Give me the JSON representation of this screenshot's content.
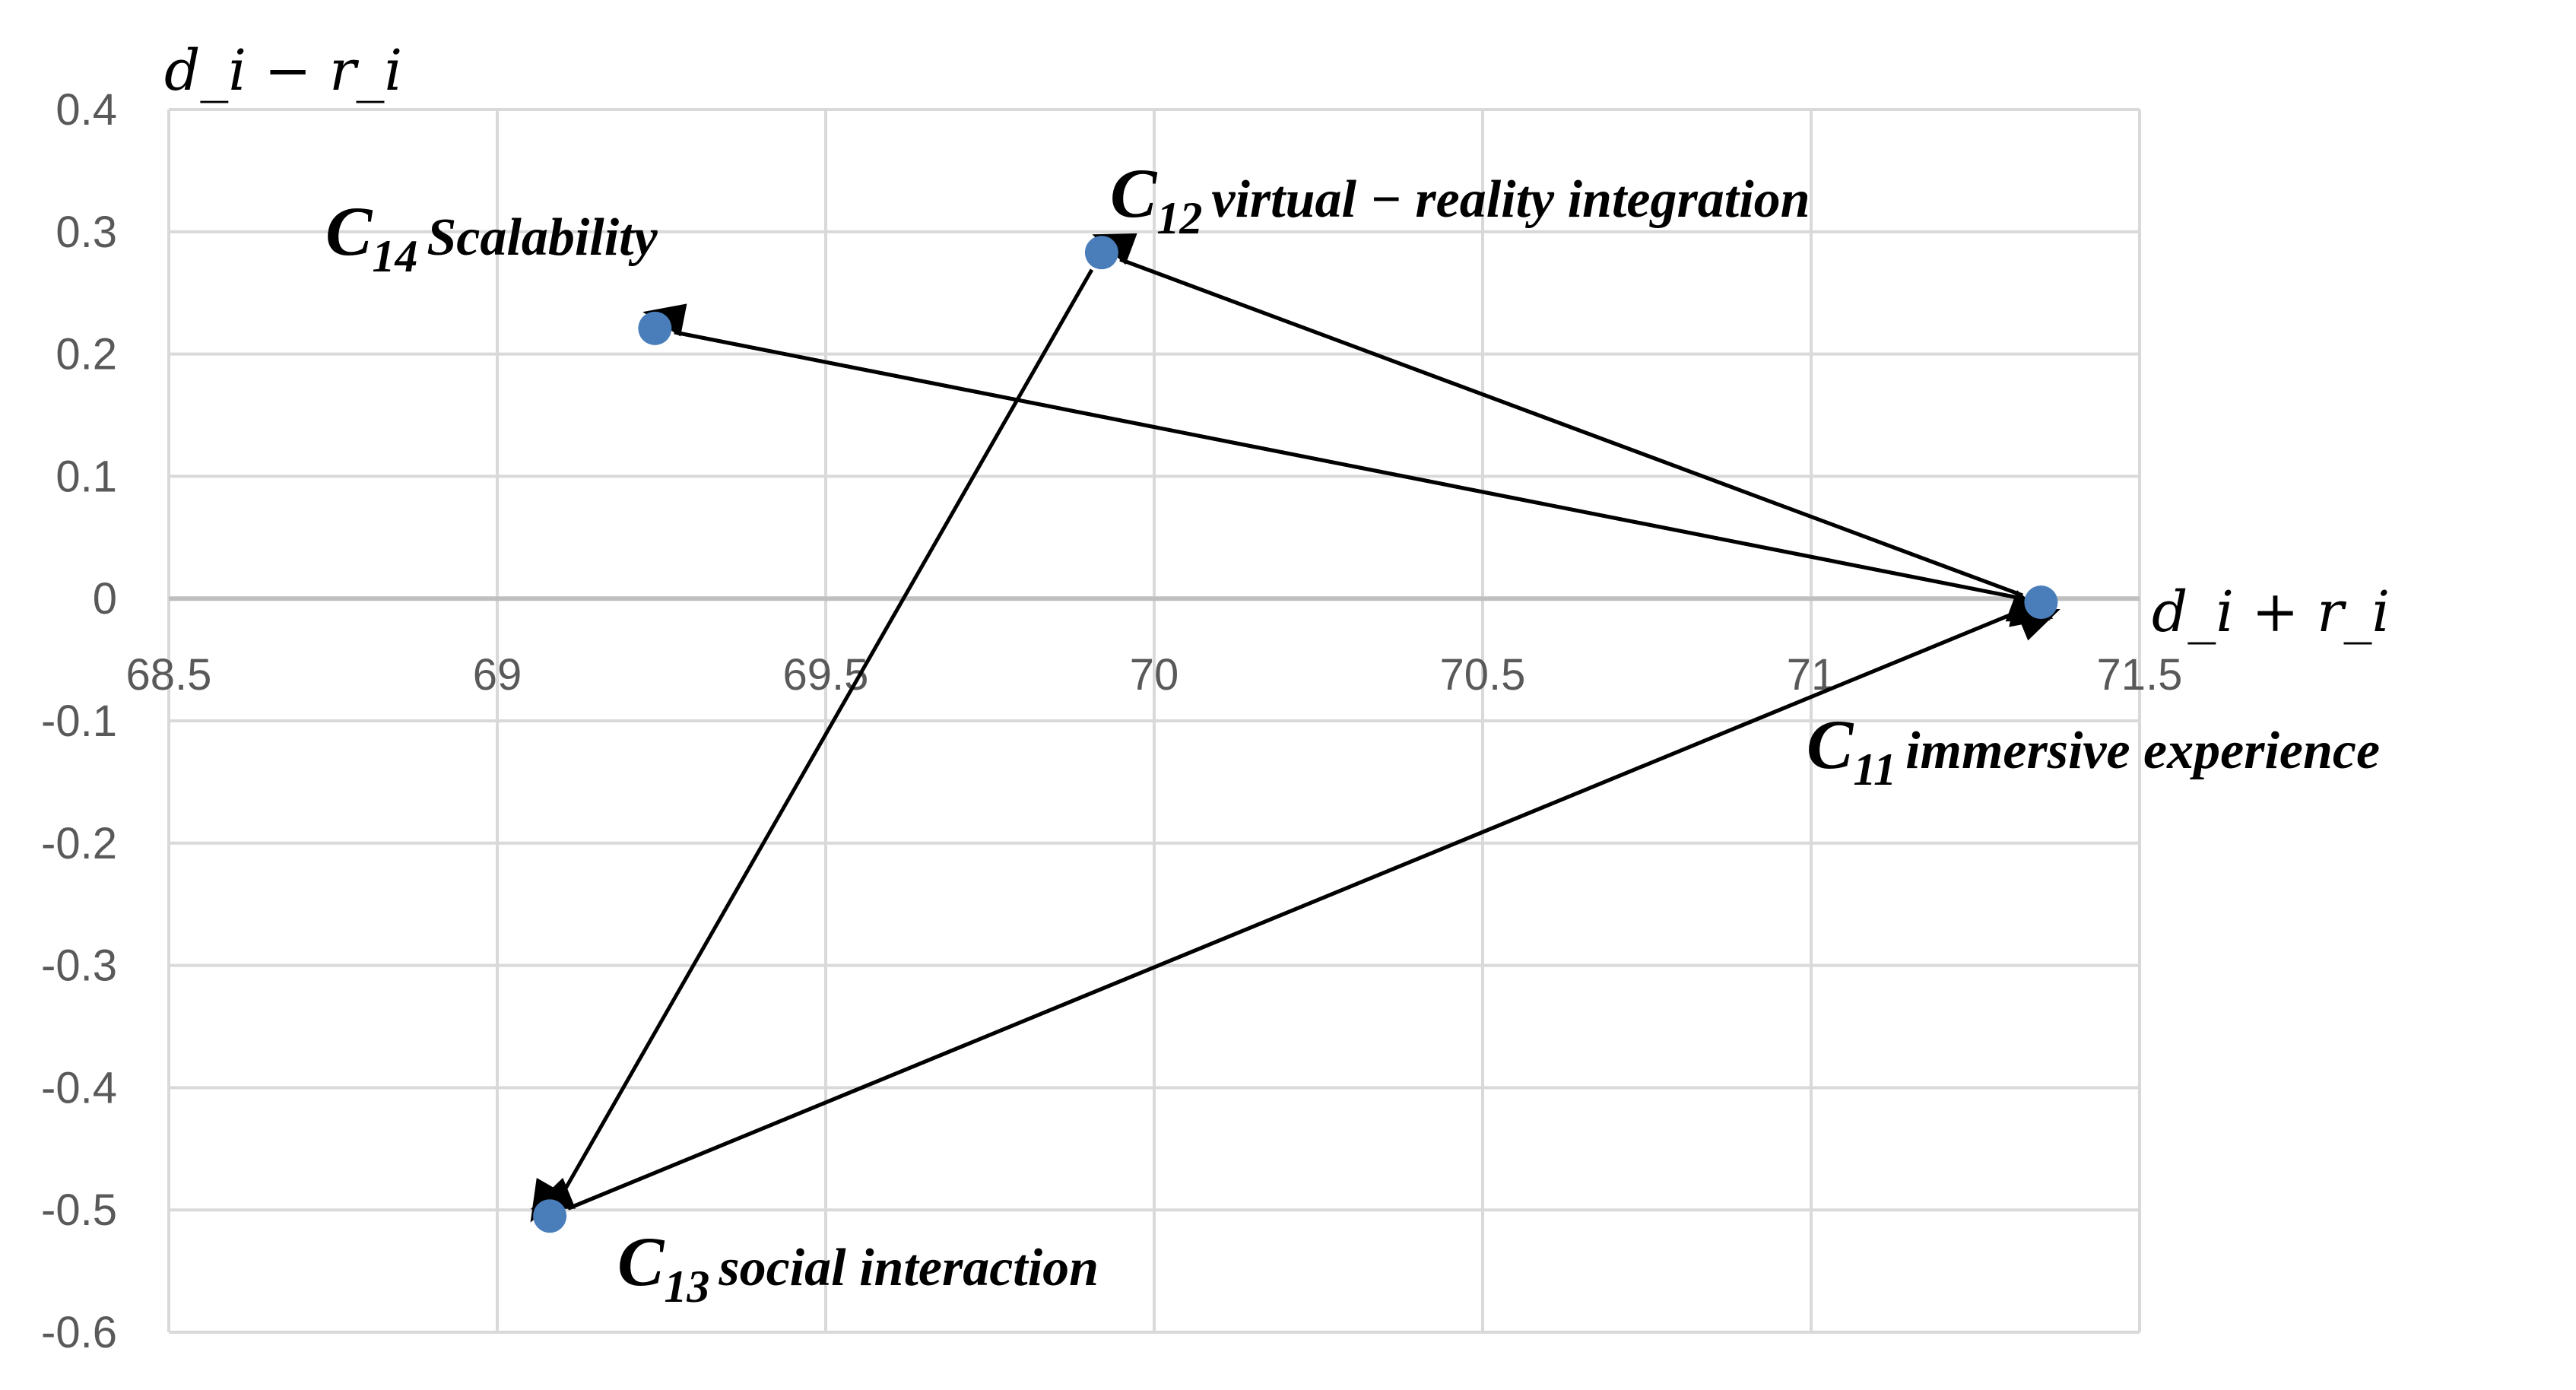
{
  "chart_data": {
    "type": "scatter",
    "xlabel": "d_i + r_i",
    "ylabel": "d_i − r_i",
    "xlim": [
      68.5,
      71.5
    ],
    "ylim": [
      -0.6,
      0.4
    ],
    "xticks": [
      "68.5",
      "69",
      "69.5",
      "70",
      "70.5",
      "71",
      "71.5"
    ],
    "yticks": [
      "0.4",
      "0.3",
      "0.2",
      "0.1",
      "0",
      "-0.1",
      "-0.2",
      "-0.3",
      "-0.4",
      "-0.5",
      "-0.6"
    ],
    "grid": true,
    "marker_color": "#4a7ebb",
    "points": [
      {
        "id": "C11",
        "code": "C",
        "sub": "11",
        "name": "immersive experience",
        "x": 71.35,
        "y": -0.003
      },
      {
        "id": "C12",
        "code": "C",
        "sub": "12",
        "name": "virtual − reality integration",
        "x": 69.92,
        "y": 0.283
      },
      {
        "id": "C13",
        "code": "C",
        "sub": "13",
        "name": "social interaction",
        "x": 69.08,
        "y": -0.505
      },
      {
        "id": "C14",
        "code": "C",
        "sub": "14",
        "name": "Scalability",
        "x": 69.24,
        "y": 0.221
      }
    ],
    "arrows": [
      {
        "from": "C11",
        "to": "C12"
      },
      {
        "from": "C12",
        "to": "C11"
      },
      {
        "from": "C11",
        "to": "C14"
      },
      {
        "from": "C14",
        "to": "C11"
      },
      {
        "from": "C11",
        "to": "C13"
      },
      {
        "from": "C13",
        "to": "C11"
      },
      {
        "from": "C12",
        "to": "C13"
      }
    ]
  }
}
